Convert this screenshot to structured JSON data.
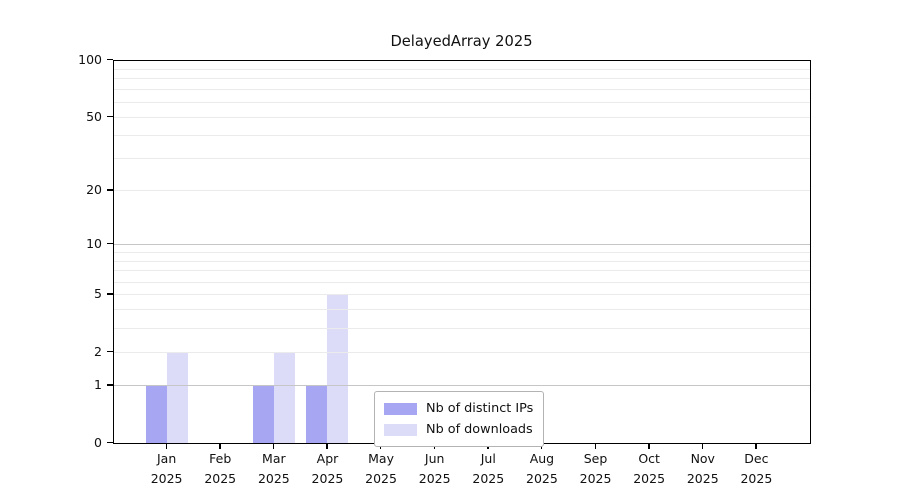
{
  "chart_data": {
    "type": "bar",
    "title": "DelayedArray 2025",
    "y_scale": "log1p",
    "ylim": [
      0,
      100
    ],
    "y_ticks": [
      0,
      1,
      2,
      5,
      10,
      20,
      50,
      100
    ],
    "grid_major_values": [
      1,
      10,
      100
    ],
    "grid_minor_values": [
      2,
      3,
      4,
      5,
      6,
      7,
      8,
      9,
      20,
      30,
      40,
      50,
      60,
      70,
      80,
      90
    ],
    "grid": "on",
    "categories": [
      "Jan",
      "Feb",
      "Mar",
      "Apr",
      "May",
      "Jun",
      "Jul",
      "Aug",
      "Sep",
      "Oct",
      "Nov",
      "Dec"
    ],
    "category_year": "2025",
    "series": [
      {
        "name": "Nb of distinct IPs",
        "color": "#a6a6f2",
        "values": [
          1,
          0,
          1,
          1,
          0,
          0,
          0,
          0,
          0,
          0,
          0,
          0
        ]
      },
      {
        "name": "Nb of downloads",
        "color": "#dcdcf8",
        "values": [
          2,
          0,
          2,
          5,
          0,
          0,
          0,
          0,
          0,
          0,
          0,
          0
        ]
      }
    ],
    "legend_position": "lower center"
  }
}
